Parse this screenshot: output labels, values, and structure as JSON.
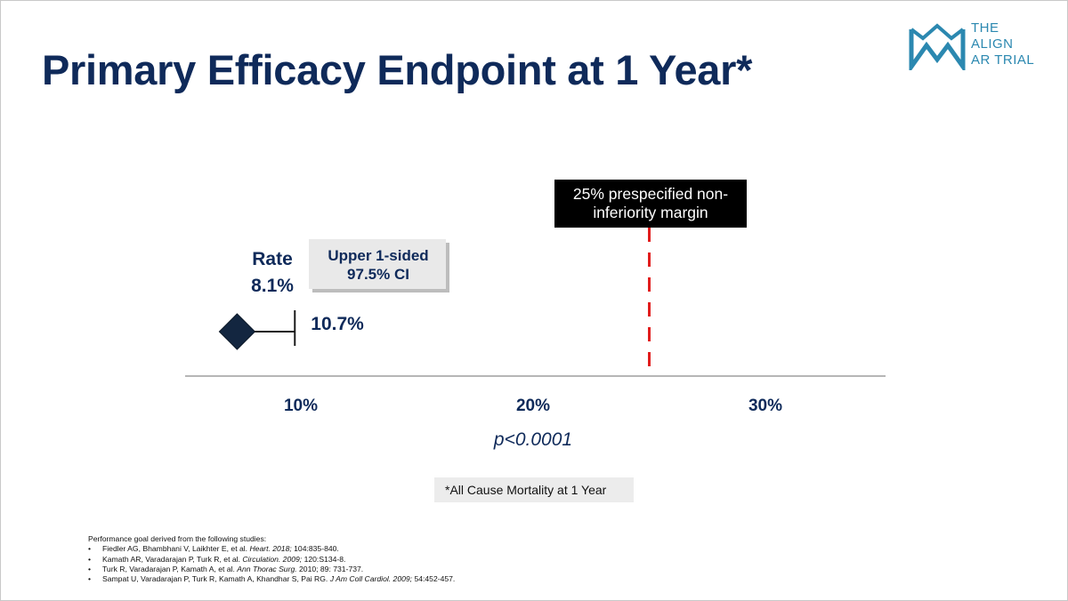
{
  "slide": {
    "title": "Primary Efficacy Endpoint at 1 Year*",
    "logo": {
      "icon": "crown-icon",
      "line1": "THE",
      "line2": "ALIGN",
      "line3": "AR TRIAL",
      "color": "#2b88b0"
    },
    "footnote": "*All Cause Mortality at 1 Year",
    "references": {
      "heading": "Performance goal derived from the following studies:",
      "items": [
        {
          "text": "Fiedler AG, Bhambhani V, Laikhter E, et al. ",
          "journal": "Heart. 2018;",
          "tail": " 104:835-840."
        },
        {
          "text": "Kamath AR, Varadarajan P, Turk R, et al. ",
          "journal": "Circulation. 2009;",
          "tail": " 120:S134-8."
        },
        {
          "text": "Turk R, Varadarajan P, Kamath A, et al. ",
          "journal": "Ann Thorac Surg.",
          "tail": " 2010; 89: 731-737."
        },
        {
          "text": "Sampat U, Varadarajan P, Turk R, Kamath A, Khandhar S, Pai RG. ",
          "journal": "J Am Coll Cardiol. 2009;",
          "tail": " 54:452-457."
        }
      ]
    }
  },
  "chart_data": {
    "type": "scatter",
    "title": "",
    "xlabel": "",
    "ylabel": "",
    "xlim": [
      5,
      35
    ],
    "xticks": [
      10,
      20,
      30
    ],
    "xtick_labels": [
      "10%",
      "20%",
      "30%"
    ],
    "grid": false,
    "point": {
      "value": 8.1,
      "marker": "diamond"
    },
    "upper_ci": {
      "value": 10.7,
      "label": "10.7%"
    },
    "rate_label": [
      "Rate",
      "8.1%"
    ],
    "ci_box_label": [
      "Upper 1-sided",
      "97.5% CI"
    ],
    "margin": {
      "value": 25,
      "label": [
        "25% prespecified non-",
        "inferiority margin"
      ]
    },
    "p_value": "p<0.0001",
    "colors": {
      "navy": "#0f2a5a",
      "marker": "#132640",
      "margin_line": "#e11d1d",
      "axis": "#8a8a8a"
    }
  }
}
